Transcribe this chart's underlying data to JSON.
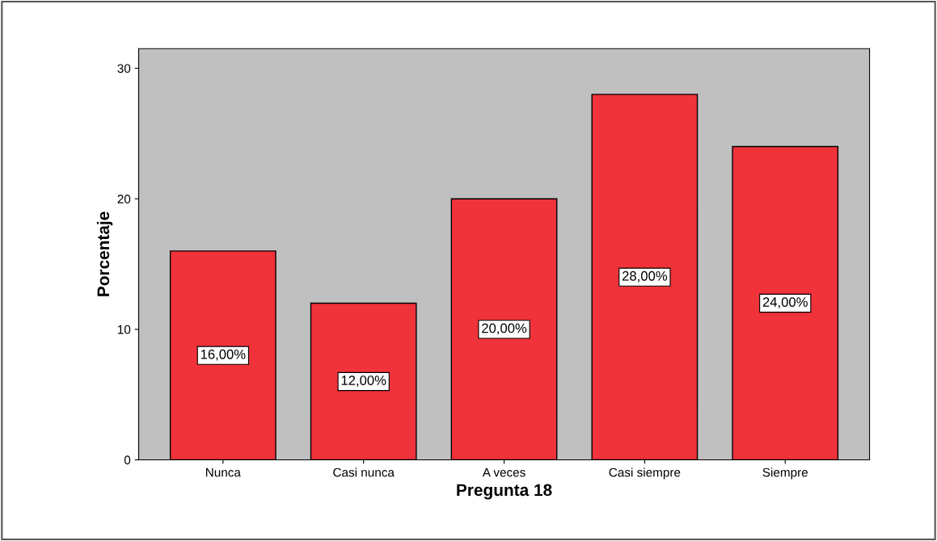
{
  "chart_data": {
    "type": "bar",
    "xlabel": "Pregunta 18",
    "ylabel": "Porcentaje",
    "categories": [
      "Nunca",
      "Casi nunca",
      "A veces",
      "Casi siempre",
      "Siempre"
    ],
    "values": [
      16,
      12,
      20,
      28,
      24
    ],
    "value_labels": [
      "16,00%",
      "12,00%",
      "20,00%",
      "28,00%",
      "24,00%"
    ],
    "color": "#f0323a",
    "ylim": [
      0,
      31.5
    ],
    "yticks": [
      0,
      10,
      20,
      30
    ],
    "grid": false
  }
}
